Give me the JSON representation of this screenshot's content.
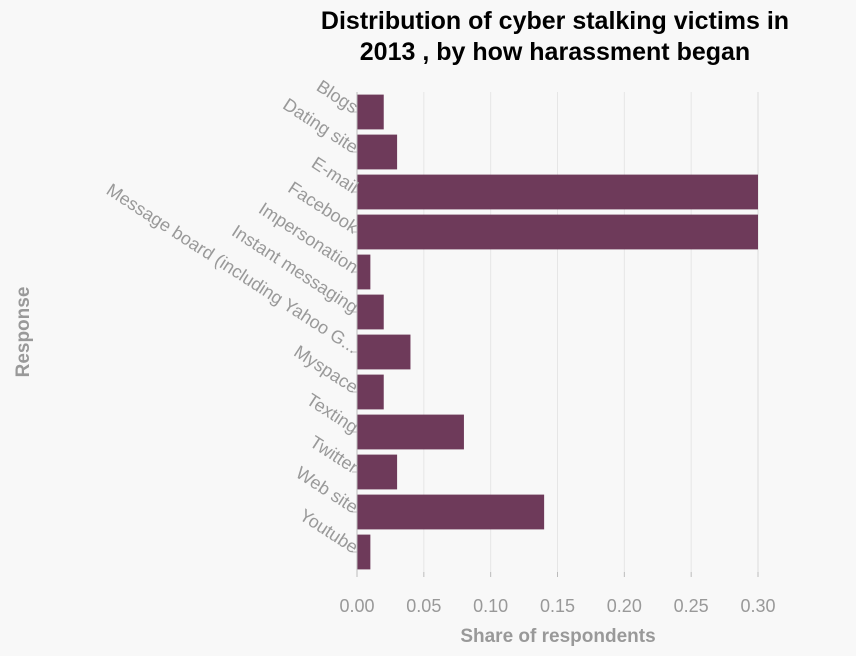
{
  "chart_data": {
    "type": "bar",
    "orientation": "horizontal",
    "title_lines": [
      "Distribution of cyber stalking victims in",
      "2013 , by how harassment began"
    ],
    "xlabel": "Share of respondents",
    "ylabel": "Response",
    "categories": [
      "Blogs",
      "Dating site",
      "E-mail",
      "Facebook",
      "Impersonation",
      "Instant messaging",
      "Message board (including Yahoo G...",
      "Myspace",
      "Texting",
      "Twitter",
      "Web site",
      "Youtube"
    ],
    "values": [
      0.02,
      0.03,
      0.31,
      0.31,
      0.01,
      0.02,
      0.04,
      0.02,
      0.08,
      0.03,
      0.14,
      0.01
    ],
    "xlim": [
      0,
      0.3
    ],
    "xticks": [
      "0.00",
      "0.05",
      "0.10",
      "0.15",
      "0.20",
      "0.25",
      "0.30"
    ],
    "grid": "vertical",
    "legend": "none",
    "colors": {
      "bar": "#6e3a5a",
      "grid": "#e6e6e6",
      "tick_text": "#999999",
      "axis_title": "#999999"
    }
  }
}
